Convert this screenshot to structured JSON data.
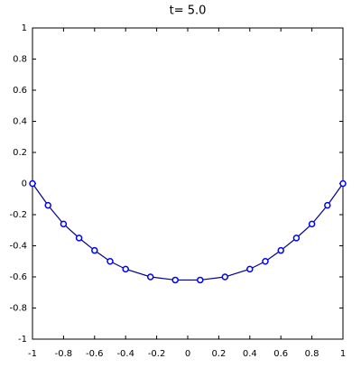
{
  "chart_data": {
    "type": "line",
    "title": "t= 5.0",
    "x": [
      -1,
      -0.9,
      -0.8,
      -0.7,
      -0.6,
      -0.5,
      -0.4,
      -0.24,
      -0.08,
      0.08,
      0.24,
      0.4,
      0.5,
      0.6,
      0.7,
      0.8,
      0.9,
      1
    ],
    "values": [
      0,
      -0.14,
      -0.26,
      -0.35,
      -0.43,
      -0.5,
      -0.55,
      -0.6,
      -0.62,
      -0.62,
      -0.6,
      -0.55,
      -0.5,
      -0.43,
      -0.35,
      -0.26,
      -0.14,
      0
    ],
    "color": "#0000ff",
    "xlim": [
      -1,
      1
    ],
    "xticks": [
      -1,
      -0.8,
      -0.6,
      -0.4,
      -0.2,
      0,
      0.2,
      0.4,
      0.6,
      0.8,
      1
    ],
    "ylim": [
      -1,
      1
    ],
    "yticks": [
      -1,
      -0.8,
      -0.6,
      -0.4,
      -0.2,
      0,
      0.2,
      0.4,
      0.6,
      0.8,
      1
    ],
    "markers": true
  }
}
